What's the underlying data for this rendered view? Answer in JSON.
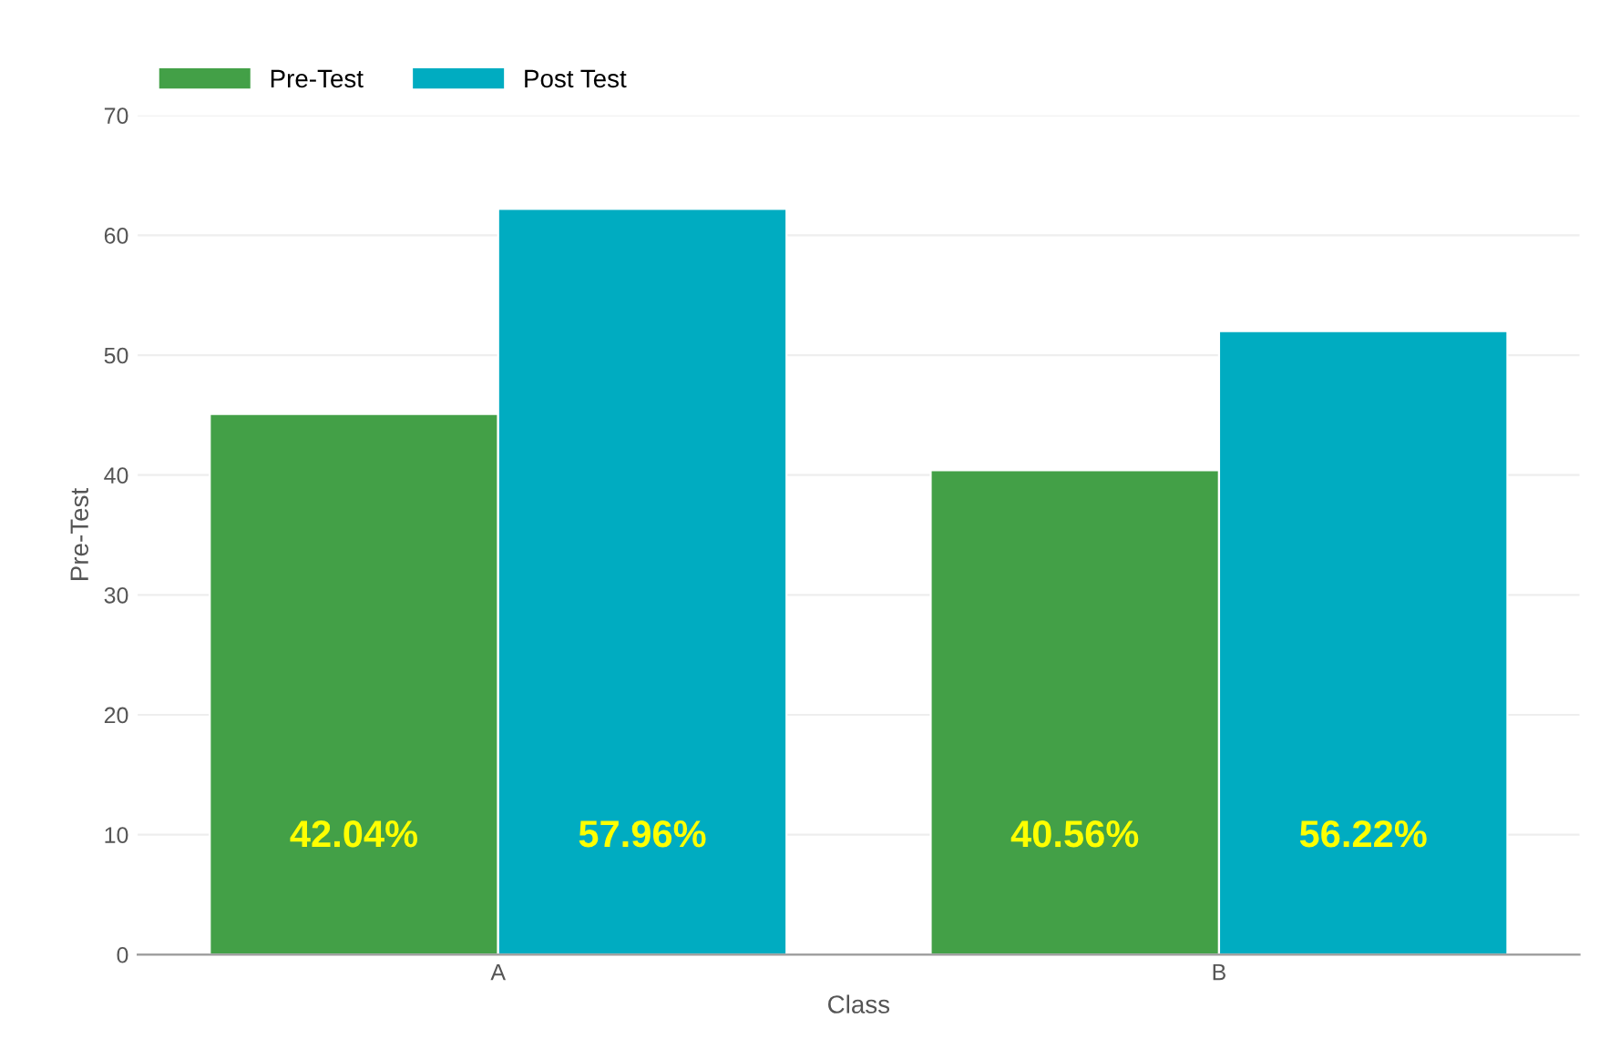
{
  "chart_data": {
    "type": "bar",
    "xlabel": "Class",
    "ylabel": "Pre-Test",
    "categories": [
      "A",
      "B"
    ],
    "series": [
      {
        "name": "Pre-Test",
        "color": "#43a047",
        "values": [
          45.1,
          40.4
        ]
      },
      {
        "name": "Post Test",
        "color": "#00acc1",
        "values": [
          62.2,
          52.0
        ]
      }
    ],
    "ylim": [
      0,
      70
    ],
    "yticks": [
      0,
      10,
      20,
      30,
      40,
      50,
      60,
      70
    ],
    "grid": "y",
    "legend": "top left",
    "annotations": [
      "42.04%",
      "57.96%",
      "40.56%",
      "56.22%"
    ]
  }
}
